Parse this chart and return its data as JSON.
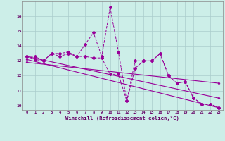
{
  "xlabel": "Windchill (Refroidissement éolien,°C)",
  "xlim": [
    -0.5,
    23.5
  ],
  "ylim": [
    9.7,
    17.0
  ],
  "yticks": [
    10,
    11,
    12,
    13,
    14,
    15,
    16
  ],
  "xtick_labels": [
    "0",
    "1",
    "2",
    "3",
    "4",
    "5",
    "6",
    "7",
    "8",
    "9",
    "10",
    "11",
    "12",
    "13",
    "14",
    "15",
    "16",
    "17",
    "18",
    "19",
    "20",
    "21",
    "22",
    "23"
  ],
  "bg_color": "#cceee8",
  "grid_color": "#aacccc",
  "line_color": "#990099",
  "series": {
    "line1_x": [
      0,
      1,
      2,
      3,
      4,
      5,
      6,
      7,
      8,
      9,
      10,
      11,
      12,
      13,
      14,
      15,
      16,
      17,
      18,
      19,
      20,
      21,
      22,
      23
    ],
    "line1_y": [
      13.3,
      13.3,
      13.0,
      13.5,
      13.5,
      13.6,
      13.3,
      14.1,
      14.9,
      13.3,
      16.6,
      13.6,
      10.3,
      13.0,
      13.0,
      13.0,
      13.5,
      12.0,
      11.5,
      11.6,
      10.5,
      10.1,
      10.1,
      9.85
    ],
    "line2_x": [
      0,
      1,
      2,
      3,
      4,
      5,
      6,
      7,
      8,
      9,
      10,
      11,
      12,
      13,
      14,
      15,
      16,
      17,
      18,
      19,
      20,
      21,
      22,
      23
    ],
    "line2_y": [
      13.3,
      13.1,
      13.0,
      13.5,
      13.3,
      13.5,
      13.3,
      13.3,
      13.2,
      13.2,
      12.1,
      12.1,
      10.3,
      12.5,
      13.0,
      13.0,
      13.5,
      12.0,
      11.5,
      11.6,
      10.5,
      10.1,
      10.1,
      9.85
    ],
    "trend1_x": [
      0,
      23
    ],
    "trend1_y": [
      13.3,
      10.5
    ],
    "trend2_x": [
      0,
      23
    ],
    "trend2_y": [
      13.1,
      9.85
    ],
    "trend3_x": [
      0,
      23
    ],
    "trend3_y": [
      12.9,
      11.5
    ]
  }
}
